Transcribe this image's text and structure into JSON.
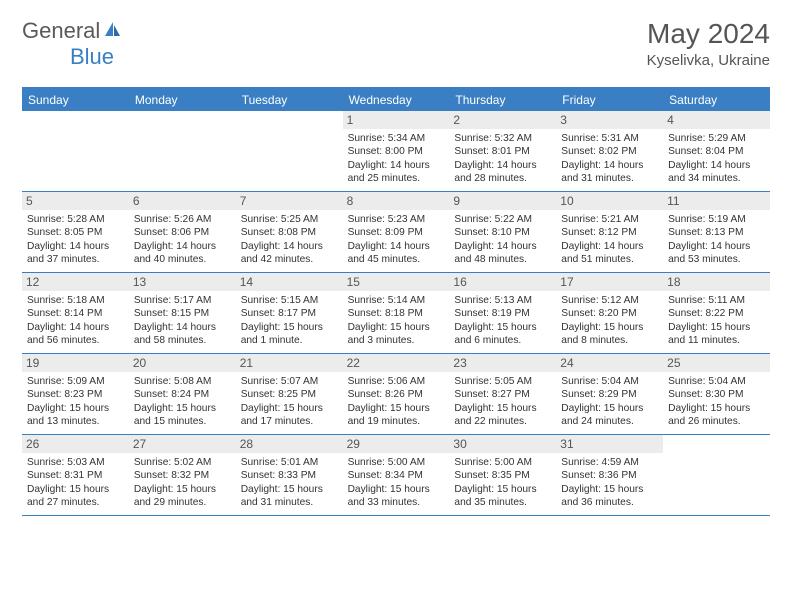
{
  "logo": {
    "text1": "General",
    "text2": "Blue"
  },
  "title": "May 2024",
  "location": "Kyselivka, Ukraine",
  "colors": {
    "header_bg": "#3a7fc4",
    "header_text": "#ffffff",
    "daynum_bg": "#ececec",
    "daynum_text": "#555555",
    "border": "#3a7fc4",
    "body_text": "#333333"
  },
  "day_names": [
    "Sunday",
    "Monday",
    "Tuesday",
    "Wednesday",
    "Thursday",
    "Friday",
    "Saturday"
  ],
  "weeks": [
    [
      null,
      null,
      null,
      {
        "n": "1",
        "sr": "5:34 AM",
        "ss": "8:00 PM",
        "dl": "14 hours and 25 minutes."
      },
      {
        "n": "2",
        "sr": "5:32 AM",
        "ss": "8:01 PM",
        "dl": "14 hours and 28 minutes."
      },
      {
        "n": "3",
        "sr": "5:31 AM",
        "ss": "8:02 PM",
        "dl": "14 hours and 31 minutes."
      },
      {
        "n": "4",
        "sr": "5:29 AM",
        "ss": "8:04 PM",
        "dl": "14 hours and 34 minutes."
      }
    ],
    [
      {
        "n": "5",
        "sr": "5:28 AM",
        "ss": "8:05 PM",
        "dl": "14 hours and 37 minutes."
      },
      {
        "n": "6",
        "sr": "5:26 AM",
        "ss": "8:06 PM",
        "dl": "14 hours and 40 minutes."
      },
      {
        "n": "7",
        "sr": "5:25 AM",
        "ss": "8:08 PM",
        "dl": "14 hours and 42 minutes."
      },
      {
        "n": "8",
        "sr": "5:23 AM",
        "ss": "8:09 PM",
        "dl": "14 hours and 45 minutes."
      },
      {
        "n": "9",
        "sr": "5:22 AM",
        "ss": "8:10 PM",
        "dl": "14 hours and 48 minutes."
      },
      {
        "n": "10",
        "sr": "5:21 AM",
        "ss": "8:12 PM",
        "dl": "14 hours and 51 minutes."
      },
      {
        "n": "11",
        "sr": "5:19 AM",
        "ss": "8:13 PM",
        "dl": "14 hours and 53 minutes."
      }
    ],
    [
      {
        "n": "12",
        "sr": "5:18 AM",
        "ss": "8:14 PM",
        "dl": "14 hours and 56 minutes."
      },
      {
        "n": "13",
        "sr": "5:17 AM",
        "ss": "8:15 PM",
        "dl": "14 hours and 58 minutes."
      },
      {
        "n": "14",
        "sr": "5:15 AM",
        "ss": "8:17 PM",
        "dl": "15 hours and 1 minute."
      },
      {
        "n": "15",
        "sr": "5:14 AM",
        "ss": "8:18 PM",
        "dl": "15 hours and 3 minutes."
      },
      {
        "n": "16",
        "sr": "5:13 AM",
        "ss": "8:19 PM",
        "dl": "15 hours and 6 minutes."
      },
      {
        "n": "17",
        "sr": "5:12 AM",
        "ss": "8:20 PM",
        "dl": "15 hours and 8 minutes."
      },
      {
        "n": "18",
        "sr": "5:11 AM",
        "ss": "8:22 PM",
        "dl": "15 hours and 11 minutes."
      }
    ],
    [
      {
        "n": "19",
        "sr": "5:09 AM",
        "ss": "8:23 PM",
        "dl": "15 hours and 13 minutes."
      },
      {
        "n": "20",
        "sr": "5:08 AM",
        "ss": "8:24 PM",
        "dl": "15 hours and 15 minutes."
      },
      {
        "n": "21",
        "sr": "5:07 AM",
        "ss": "8:25 PM",
        "dl": "15 hours and 17 minutes."
      },
      {
        "n": "22",
        "sr": "5:06 AM",
        "ss": "8:26 PM",
        "dl": "15 hours and 19 minutes."
      },
      {
        "n": "23",
        "sr": "5:05 AM",
        "ss": "8:27 PM",
        "dl": "15 hours and 22 minutes."
      },
      {
        "n": "24",
        "sr": "5:04 AM",
        "ss": "8:29 PM",
        "dl": "15 hours and 24 minutes."
      },
      {
        "n": "25",
        "sr": "5:04 AM",
        "ss": "8:30 PM",
        "dl": "15 hours and 26 minutes."
      }
    ],
    [
      {
        "n": "26",
        "sr": "5:03 AM",
        "ss": "8:31 PM",
        "dl": "15 hours and 27 minutes."
      },
      {
        "n": "27",
        "sr": "5:02 AM",
        "ss": "8:32 PM",
        "dl": "15 hours and 29 minutes."
      },
      {
        "n": "28",
        "sr": "5:01 AM",
        "ss": "8:33 PM",
        "dl": "15 hours and 31 minutes."
      },
      {
        "n": "29",
        "sr": "5:00 AM",
        "ss": "8:34 PM",
        "dl": "15 hours and 33 minutes."
      },
      {
        "n": "30",
        "sr": "5:00 AM",
        "ss": "8:35 PM",
        "dl": "15 hours and 35 minutes."
      },
      {
        "n": "31",
        "sr": "4:59 AM",
        "ss": "8:36 PM",
        "dl": "15 hours and 36 minutes."
      },
      null
    ]
  ],
  "labels": {
    "sunrise": "Sunrise:",
    "sunset": "Sunset:",
    "daylight": "Daylight:"
  }
}
